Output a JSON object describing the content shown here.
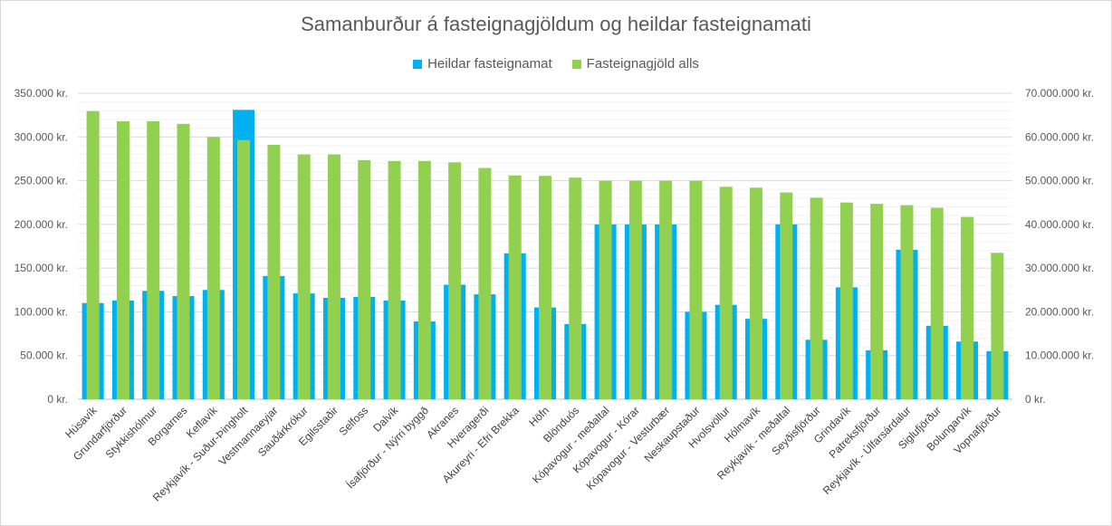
{
  "chart_data": {
    "type": "bar",
    "title": "Samanburður á fasteignagjöldum og heildar fasteignamati",
    "categories": [
      "Húsavík",
      "Grundarfjörður",
      "Stykkishólmur",
      "Borgarnes",
      "Keflavík",
      "Reykjavík - Suður-Þingholt",
      "Vestmannaeyjar",
      "Sauðárkrókur",
      "Egilsstaðir",
      "Selfoss",
      "Dalvík",
      "Ísafjörður - Nýrri byggð",
      "Akranes",
      "Hveragerði",
      "Akureyri - Efri Brekka",
      "Höfn",
      "Blönduós",
      "Kópavogur - meðaltal",
      "Kópavogur - Kórar",
      "Kópavogur - Vesturbær",
      "Neskaupstaður",
      "Hvolsvöllur",
      "Hólmavík",
      "Reykjavík - meðaltal",
      "Seyðisfjörður",
      "Grindavík",
      "Patreksfjörður",
      "Reykjavík - Úlfarsárdalur",
      "Siglufjörður",
      "Bolungarvík",
      "Vopnafjörður"
    ],
    "series": [
      {
        "name": "Heildar fasteignamat",
        "axis": "left",
        "color": "#00b0f0",
        "values": [
          110000,
          113000,
          124000,
          118000,
          125000,
          331000,
          141000,
          121000,
          116000,
          117000,
          113000,
          89000,
          131000,
          120000,
          167000,
          105000,
          86000,
          200000,
          200000,
          200000,
          100000,
          108000,
          92000,
          200000,
          68000,
          128000,
          56000,
          171000,
          84000,
          66000,
          55000
        ]
      },
      {
        "name": "Fasteignagjöld alls",
        "axis": "right",
        "color": "#92d050",
        "values": [
          65900000,
          63600000,
          63600000,
          63000000,
          60000000,
          59300000,
          58200000,
          56000000,
          56000000,
          54700000,
          54500000,
          54500000,
          54200000,
          52900000,
          51200000,
          51100000,
          50700000,
          50000000,
          50000000,
          50000000,
          50000000,
          48600000,
          48400000,
          47300000,
          46100000,
          45000000,
          44700000,
          44400000,
          43800000,
          41700000,
          33500000
        ]
      }
    ],
    "y_left": {
      "min": 0,
      "max": 350000,
      "step": 50000,
      "suffix": " kr."
    },
    "y_right": {
      "min": 0,
      "max": 70000000,
      "step": 10000000,
      "suffix": " kr."
    },
    "grid": true,
    "legend_position": "top"
  }
}
